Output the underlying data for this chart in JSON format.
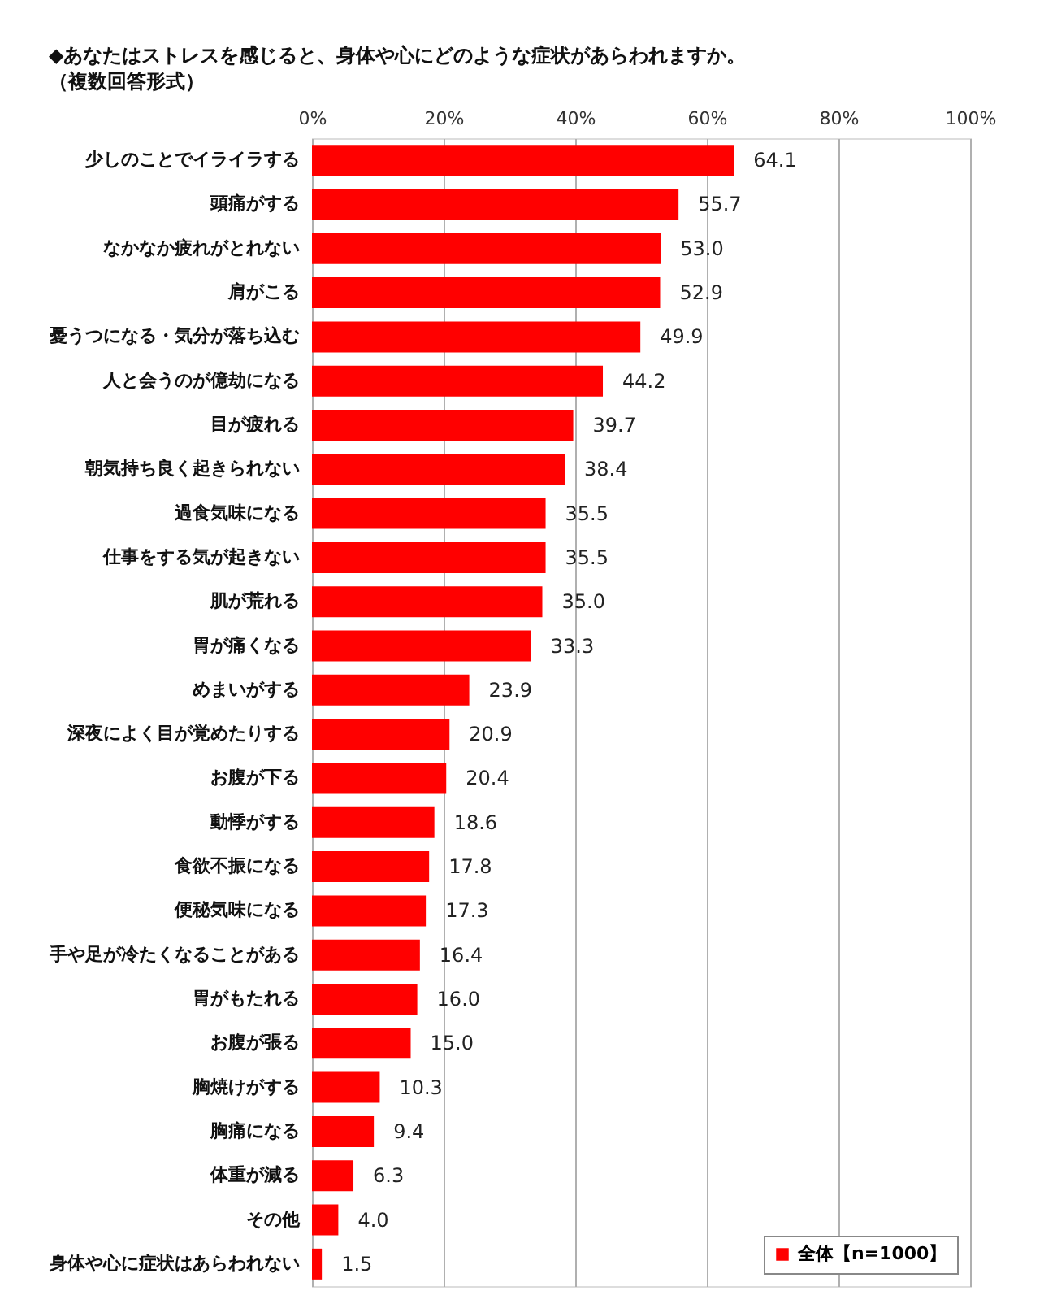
{
  "chart_data": {
    "type": "bar",
    "orientation": "horizontal",
    "title": "◆あなたはストレスを感じると、身体や心にどのような症状があらわれますか。",
    "subtitle": "（複数回答形式）",
    "categories": [
      "少しのことでイライラする",
      "頭痛がする",
      "なかなか疲れがとれない",
      "肩がこる",
      "憂うつになる・気分が落ち込む",
      "人と会うのが億劫になる",
      "目が疲れる",
      "朝気持ち良く起きられない",
      "過食気味になる",
      "仕事をする気が起きない",
      "肌が荒れる",
      "胃が痛くなる",
      "めまいがする",
      "深夜によく目が覚めたりする",
      "お腹が下る",
      "動悸がする",
      "食欲不振になる",
      "便秘気味になる",
      "手や足が冷たくなることがある",
      "胃がもたれる",
      "お腹が張る",
      "胸焼けがする",
      "胸痛になる",
      "体重が減る",
      "その他",
      "身体や心に症状はあらわれない"
    ],
    "series": [
      {
        "name": "全体【n=1000】",
        "color": "#ff0000",
        "values": [
          64.1,
          55.7,
          53.0,
          52.9,
          49.9,
          44.2,
          39.7,
          38.4,
          35.5,
          35.5,
          35.0,
          33.3,
          23.9,
          20.9,
          20.4,
          18.6,
          17.8,
          17.3,
          16.4,
          16.0,
          15.0,
          10.3,
          9.4,
          6.3,
          4.0,
          1.5
        ],
        "value_labels": [
          "64.1",
          "55.7",
          "53.0",
          "52.9",
          "49.9",
          "44.2",
          "39.7",
          "38.4",
          "35.5",
          "35.5",
          "35.0",
          "33.3",
          "23.9",
          "20.9",
          "20.4",
          "18.6",
          "17.8",
          "17.3",
          "16.4",
          "16.0",
          "15.0",
          "10.3",
          "9.4",
          "6.3",
          "4.0",
          "1.5"
        ]
      }
    ],
    "xlim": [
      0,
      100
    ],
    "xticks": [
      {
        "value": 0,
        "label": "0%"
      },
      {
        "value": 20,
        "label": "20%"
      },
      {
        "value": 40,
        "label": "40%"
      },
      {
        "value": 60,
        "label": "60%"
      },
      {
        "value": 80,
        "label": "80%"
      },
      {
        "value": 100,
        "label": "100%"
      }
    ],
    "grid": "x",
    "legend": "bottom right"
  }
}
